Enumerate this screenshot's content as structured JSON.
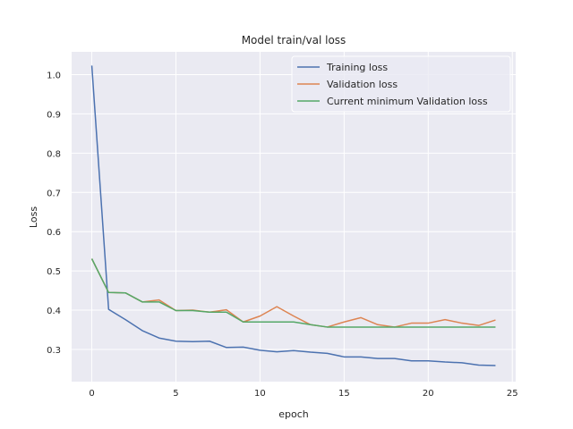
{
  "chart_data": {
    "type": "line",
    "title": "Model train/val loss",
    "xlabel": "epoch",
    "ylabel": "Loss",
    "xlim": [
      -1.2,
      25.2
    ],
    "ylim": [
      0.218,
      1.058
    ],
    "xticks": [
      0,
      5,
      10,
      15,
      20,
      25
    ],
    "yticks": [
      0.3,
      0.4,
      0.5,
      0.6,
      0.7,
      0.8,
      0.9,
      1.0
    ],
    "xtick_labels": [
      "0",
      "5",
      "10",
      "15",
      "20",
      "25"
    ],
    "ytick_labels": [
      "0.3",
      "0.4",
      "0.5",
      "0.6",
      "0.7",
      "0.8",
      "0.9",
      "1.0"
    ],
    "grid": true,
    "legend_position": "top-right",
    "x": [
      0,
      1,
      2,
      3,
      4,
      5,
      6,
      7,
      8,
      9,
      10,
      11,
      12,
      13,
      14,
      15,
      16,
      17,
      18,
      19,
      20,
      21,
      22,
      23,
      24
    ],
    "series": [
      {
        "name": "Training loss",
        "color": "#4c72b0",
        "values": [
          1.023,
          0.402,
          0.376,
          0.348,
          0.329,
          0.321,
          0.32,
          0.321,
          0.305,
          0.306,
          0.298,
          0.294,
          0.297,
          0.293,
          0.29,
          0.281,
          0.281,
          0.277,
          0.277,
          0.271,
          0.271,
          0.268,
          0.266,
          0.26,
          0.259
        ]
      },
      {
        "name": "Validation loss",
        "color": "#dd8452",
        "values": [
          0.531,
          0.445,
          0.444,
          0.421,
          0.426,
          0.399,
          0.4,
          0.395,
          0.401,
          0.37,
          0.385,
          0.409,
          0.385,
          0.363,
          0.357,
          0.37,
          0.381,
          0.363,
          0.357,
          0.367,
          0.367,
          0.376,
          0.367,
          0.361,
          0.375
        ]
      },
      {
        "name": "Current minimum Validation loss",
        "color": "#55a868",
        "values": [
          0.531,
          0.445,
          0.444,
          0.421,
          0.421,
          0.399,
          0.399,
          0.395,
          0.395,
          0.37,
          0.37,
          0.37,
          0.37,
          0.363,
          0.357,
          0.357,
          0.357,
          0.357,
          0.357,
          0.357,
          0.357,
          0.357,
          0.357,
          0.357,
          0.357
        ]
      }
    ]
  },
  "colors": {
    "plot_background": "#eaeaf2",
    "grid": "#ffffff"
  }
}
